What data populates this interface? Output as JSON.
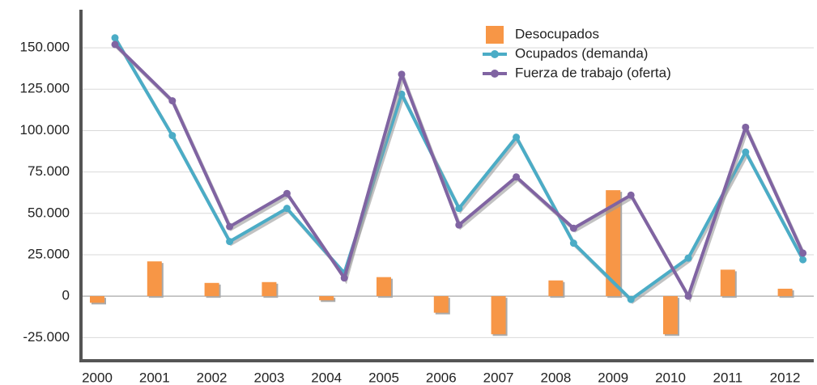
{
  "chart_data": {
    "type": "bar-line",
    "categories": [
      "2000",
      "2001",
      "2002",
      "2003",
      "2004",
      "2005",
      "2006",
      "2007",
      "2008",
      "2009",
      "2010",
      "2011",
      "2012"
    ],
    "series": [
      {
        "name": "Desocupados",
        "type": "bar",
        "color": "#f79646",
        "values": [
          -4000,
          21000,
          8000,
          8500,
          -2500,
          11500,
          -10000,
          -23000,
          9500,
          64000,
          -23000,
          16000,
          4500
        ]
      },
      {
        "name": "Ocupados (demanda)",
        "type": "line",
        "color": "#4bacc6",
        "values": [
          156000,
          97000,
          33000,
          53000,
          14000,
          122000,
          53000,
          96000,
          32000,
          -2000,
          23000,
          87000,
          22000
        ]
      },
      {
        "name": "Fuerza de trabajo (oferta)",
        "type": "line",
        "color": "#8064a2",
        "values": [
          152000,
          118000,
          42000,
          62000,
          11000,
          134000,
          43000,
          72000,
          41000,
          61000,
          0,
          102000,
          26000
        ]
      }
    ],
    "ylim": [
      -39000,
      173000
    ],
    "yticks": [
      {
        "value": -25000,
        "label": "-25.000"
      },
      0,
      {
        "value": 25000,
        "label": "25.000"
      },
      {
        "value": 50000,
        "label": "50.000"
      },
      {
        "value": 75000,
        "label": "75.000"
      },
      {
        "value": 100000,
        "label": "100.000"
      },
      {
        "value": 125000,
        "label": "125.000"
      },
      {
        "value": 150000,
        "label": "150.000"
      }
    ],
    "grid": true,
    "legend": "top-right"
  }
}
